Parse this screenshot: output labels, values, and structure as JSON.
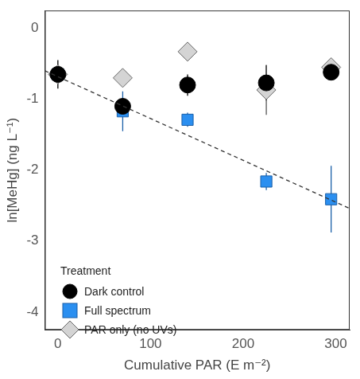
{
  "chart_data": {
    "type": "scatter",
    "x_label": "Cumulative PAR (E m⁻²)",
    "y_label": "ln[MeHg] (ng L⁻¹)",
    "legend_title": "Treatment",
    "legend": "bottom-left",
    "grid": false,
    "x": [
      0,
      70,
      140,
      225,
      295
    ],
    "series": [
      {
        "name": "Dark control",
        "color": "#000000",
        "marker": "circle",
        "values": [
          -0.65,
          -1.1,
          -0.8,
          -0.77,
          -0.62
        ],
        "errors": [
          0.2,
          0.1,
          0.15,
          0.25,
          0.1
        ]
      },
      {
        "name": "Full spectrum",
        "color": "#2b8ff0",
        "marker": "square",
        "values": [
          -0.65,
          -1.17,
          -1.29,
          -2.16,
          -2.41
        ],
        "errors": [
          0.1,
          0.28,
          0.1,
          0.12,
          0.47
        ]
      },
      {
        "name": "PAR only (no UVs)",
        "color": "#d4d4d4",
        "marker": "diamond",
        "values": [
          -0.65,
          -0.7,
          -0.33,
          -0.87,
          -0.55
        ],
        "errors": [
          0.05,
          0.05,
          0.05,
          0.35,
          0.1
        ]
      }
    ],
    "fit": {
      "x": [
        -14,
        315
      ],
      "values": [
        -0.6,
        -2.54
      ],
      "color": "#333333",
      "line_style": "dashed"
    },
    "xlim": [
      -14,
      315
    ],
    "xticks": [
      0,
      100,
      200,
      300
    ],
    "ylim": [
      -4.25,
      0.25
    ],
    "yticks": [
      -4,
      -3,
      -2,
      -1,
      0
    ]
  }
}
